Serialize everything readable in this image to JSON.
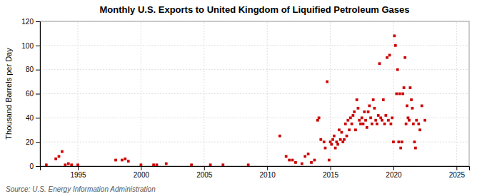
{
  "chart_data": {
    "type": "scatter",
    "title": "Monthly U.S. Exports to United Kingdom of Liquified Petroleum Gases",
    "ylabel": "Thousand Barrels per Day",
    "source": "Source: U.S. Energy Information Administration",
    "color": "#CC0000",
    "marker": "square",
    "grid": true,
    "xlim": [
      1992,
      2026
    ],
    "ylim": [
      0,
      120
    ],
    "xticks": [
      1995,
      2000,
      2005,
      2010,
      2015,
      2020,
      2025
    ],
    "yticks": [
      0,
      20,
      40,
      60,
      80,
      100,
      120
    ],
    "x": [
      1992.5,
      1993.25,
      1993.5,
      1993.75,
      1994.0,
      1994.25,
      1994.5,
      1995.0,
      1998.0,
      1998.5,
      1998.75,
      1999.0,
      2000.0,
      2001.0,
      2001.25,
      2002.0,
      2004.0,
      2005.5,
      2006.5,
      2008.5,
      2011.0,
      2011.5,
      2011.75,
      2012.0,
      2012.25,
      2012.75,
      2013.0,
      2013.25,
      2013.5,
      2013.75,
      2014.0,
      2014.1,
      2014.25,
      2014.5,
      2014.6,
      2014.75,
      2014.9,
      2015.0,
      2015.1,
      2015.2,
      2015.3,
      2015.4,
      2015.5,
      2015.6,
      2015.7,
      2015.8,
      2015.9,
      2016.0,
      2016.1,
      2016.2,
      2016.3,
      2016.4,
      2016.5,
      2016.6,
      2016.7,
      2016.8,
      2016.9,
      2017.0,
      2017.1,
      2017.2,
      2017.3,
      2017.4,
      2017.5,
      2017.6,
      2017.7,
      2017.8,
      2017.9,
      2018.0,
      2018.1,
      2018.2,
      2018.3,
      2018.4,
      2018.5,
      2018.6,
      2018.7,
      2018.8,
      2018.9,
      2019.0,
      2019.1,
      2019.2,
      2019.3,
      2019.4,
      2019.5,
      2019.6,
      2019.7,
      2019.8,
      2019.9,
      2020.0,
      2020.08,
      2020.16,
      2020.25,
      2020.33,
      2020.42,
      2020.5,
      2020.58,
      2020.67,
      2020.75,
      2020.83,
      2020.92,
      2021.0,
      2021.08,
      2021.16,
      2021.25,
      2021.33,
      2021.42,
      2021.5,
      2021.58,
      2021.67,
      2021.75,
      2021.83,
      2022.0,
      2022.1,
      2022.25,
      2022.5
    ],
    "values": [
      1,
      6,
      8,
      12,
      1,
      2,
      1,
      1,
      5,
      5,
      6,
      4,
      1,
      1,
      1,
      2,
      1,
      1,
      1,
      1,
      25,
      8,
      5,
      5,
      3,
      2,
      8,
      10,
      3,
      5,
      38,
      40,
      22,
      20,
      15,
      70,
      5,
      20,
      18,
      22,
      25,
      15,
      20,
      18,
      30,
      22,
      28,
      20,
      22,
      35,
      25,
      38,
      30,
      40,
      35,
      42,
      45,
      30,
      55,
      48,
      38,
      35,
      40,
      35,
      45,
      38,
      32,
      45,
      50,
      40,
      35,
      55,
      48,
      38,
      35,
      42,
      85,
      40,
      38,
      55,
      35,
      42,
      90,
      38,
      92,
      35,
      40,
      20,
      108,
      100,
      60,
      80,
      20,
      60,
      15,
      20,
      60,
      65,
      90,
      35,
      50,
      40,
      38,
      65,
      55,
      48,
      35,
      20,
      15,
      38,
      35,
      30,
      50,
      38
    ]
  }
}
